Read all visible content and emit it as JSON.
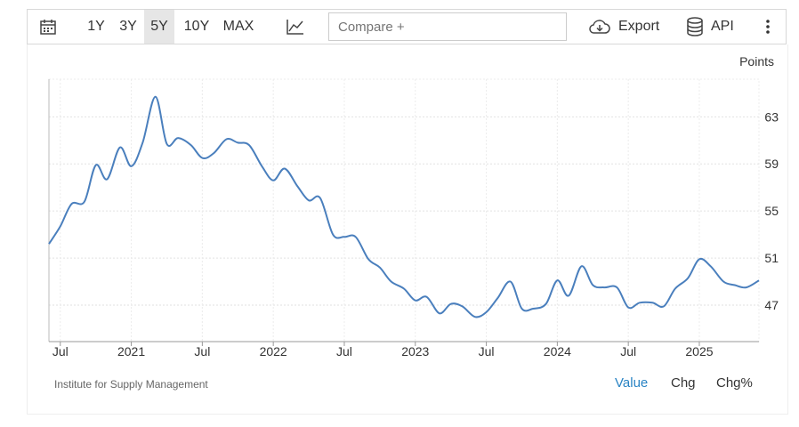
{
  "toolbar": {
    "calendar_icon": "calendar-icon",
    "ranges": [
      "1Y",
      "3Y",
      "5Y",
      "10Y",
      "MAX"
    ],
    "active_range": "5Y",
    "chart_type_icon": "line-chart-icon",
    "compare_placeholder": "Compare +",
    "export_icon": "cloud-download-icon",
    "export_label": "Export",
    "api_icon": "database-icon",
    "api_label": "API",
    "more_icon": "vertical-dots-icon"
  },
  "footer": {
    "source": "Institute for Supply Management",
    "views": [
      "Value",
      "Chg",
      "Chg%"
    ],
    "active_view": "Value",
    "active_color": "#2a84c4"
  },
  "chart_data": {
    "type": "line",
    "unit_label": "Points",
    "line_color": "#4a7fbd",
    "grid": true,
    "y_ticks": [
      47,
      51,
      55,
      59,
      63
    ],
    "ylim": [
      43.9,
      66.2
    ],
    "x_labels": [
      {
        "label": "Jul",
        "x": 2020.54
      },
      {
        "label": "2021",
        "x": 2021.04
      },
      {
        "label": "Jul",
        "x": 2021.54
      },
      {
        "label": "2022",
        "x": 2022.04
      },
      {
        "label": "Jul",
        "x": 2022.54
      },
      {
        "label": "2023",
        "x": 2023.04
      },
      {
        "label": "Jul",
        "x": 2023.54
      },
      {
        "label": "2024",
        "x": 2024.04
      },
      {
        "label": "Jul",
        "x": 2024.54
      },
      {
        "label": "2025",
        "x": 2025.04
      }
    ],
    "xlim": [
      2020.46,
      2025.46
    ],
    "series": [
      {
        "values": [
          [
            2020.46,
            52.2
          ],
          [
            2020.54,
            53.7
          ],
          [
            2020.62,
            55.6
          ],
          [
            2020.71,
            55.8
          ],
          [
            2020.79,
            58.9
          ],
          [
            2020.87,
            57.7
          ],
          [
            2020.96,
            60.4
          ],
          [
            2021.04,
            58.8
          ],
          [
            2021.12,
            60.8
          ],
          [
            2021.21,
            64.7
          ],
          [
            2021.29,
            60.7
          ],
          [
            2021.37,
            61.2
          ],
          [
            2021.46,
            60.6
          ],
          [
            2021.54,
            59.5
          ],
          [
            2021.62,
            59.9
          ],
          [
            2021.71,
            61.1
          ],
          [
            2021.79,
            60.8
          ],
          [
            2021.87,
            60.6
          ],
          [
            2021.96,
            58.8
          ],
          [
            2022.04,
            57.6
          ],
          [
            2022.12,
            58.6
          ],
          [
            2022.21,
            57.1
          ],
          [
            2022.29,
            55.9
          ],
          [
            2022.37,
            56.1
          ],
          [
            2022.46,
            53.0
          ],
          [
            2022.54,
            52.8
          ],
          [
            2022.62,
            52.8
          ],
          [
            2022.71,
            50.9
          ],
          [
            2022.79,
            50.2
          ],
          [
            2022.87,
            49.0
          ],
          [
            2022.96,
            48.4
          ],
          [
            2023.04,
            47.4
          ],
          [
            2023.12,
            47.7
          ],
          [
            2023.21,
            46.3
          ],
          [
            2023.29,
            47.1
          ],
          [
            2023.37,
            46.9
          ],
          [
            2023.46,
            46.0
          ],
          [
            2023.54,
            46.4
          ],
          [
            2023.62,
            47.6
          ],
          [
            2023.71,
            49.0
          ],
          [
            2023.79,
            46.7
          ],
          [
            2023.87,
            46.7
          ],
          [
            2023.96,
            47.1
          ],
          [
            2024.04,
            49.1
          ],
          [
            2024.12,
            47.8
          ],
          [
            2024.21,
            50.3
          ],
          [
            2024.29,
            48.7
          ],
          [
            2024.37,
            48.5
          ],
          [
            2024.46,
            48.5
          ],
          [
            2024.54,
            46.8
          ],
          [
            2024.62,
            47.2
          ],
          [
            2024.71,
            47.2
          ],
          [
            2024.79,
            46.9
          ],
          [
            2024.87,
            48.4
          ],
          [
            2024.96,
            49.3
          ],
          [
            2025.04,
            50.9
          ],
          [
            2025.12,
            50.3
          ],
          [
            2025.21,
            49.0
          ],
          [
            2025.29,
            48.7
          ],
          [
            2025.37,
            48.5
          ],
          [
            2025.46,
            49.1
          ]
        ]
      }
    ]
  }
}
